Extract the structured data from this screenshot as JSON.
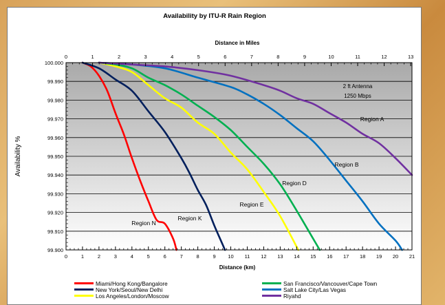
{
  "chart_data": {
    "type": "line",
    "title": "Availability by ITU-R Rain Region",
    "top_axis_title": "Distance in Miles",
    "xlabel": "Distance (km)",
    "ylabel": "Availability %",
    "xlim": [
      0,
      21
    ],
    "ylim": [
      99.9,
      100.0
    ],
    "x_ticks": [
      0,
      1,
      2,
      3,
      4,
      5,
      6,
      7,
      8,
      9,
      10,
      11,
      12,
      13,
      14,
      15,
      16,
      17,
      18,
      19,
      20,
      21
    ],
    "y_ticks": [
      "99.900",
      "99.910",
      "99.920",
      "99.930",
      "99.940",
      "99.950",
      "99.960",
      "99.970",
      "99.980",
      "99.990",
      "100.000"
    ],
    "top_ticks": [
      0,
      1,
      2,
      3,
      4,
      5,
      6,
      7,
      8,
      9,
      10,
      11,
      12,
      13
    ],
    "grid": true,
    "background": "gray-gradient",
    "annotations": [
      "2 ft Antenna",
      "1250 Mbps"
    ],
    "series": [
      {
        "name": "Miami/Hong Kong/Bangalore",
        "label": "Region N",
        "color": "#ff0000",
        "x": [
          1.0,
          1.5,
          2.0,
          2.5,
          3.0,
          3.5,
          4.0,
          4.5,
          5.0,
          5.5,
          6.0,
          6.5,
          6.7
        ],
        "y": [
          100.0,
          99.998,
          99.993,
          99.985,
          99.973,
          99.962,
          99.949,
          99.937,
          99.926,
          99.916,
          99.914,
          99.906,
          99.9
        ]
      },
      {
        "name": "New York/Seoul/New Delhi",
        "label": "Region K",
        "color": "#001f5c",
        "x": [
          1.0,
          2.0,
          3.0,
          4.0,
          5.0,
          6.0,
          7.0,
          7.5,
          8.0,
          8.5,
          9.0,
          9.5,
          9.65
        ],
        "y": [
          100.0,
          99.997,
          99.991,
          99.985,
          99.974,
          99.963,
          99.949,
          99.941,
          99.932,
          99.924,
          99.913,
          99.903,
          99.9
        ]
      },
      {
        "name": "Los Angeles/London/Moscow",
        "label": "Region E",
        "color": "#ffff00",
        "x": [
          2.0,
          3.0,
          4.0,
          5.0,
          6.0,
          7.0,
          8.0,
          9.0,
          10.0,
          11.0,
          12.0,
          13.0,
          14.1
        ],
        "y": [
          100.0,
          99.998,
          99.995,
          99.988,
          99.981,
          99.976,
          99.968,
          99.962,
          99.952,
          99.943,
          99.931,
          99.918,
          99.9
        ]
      },
      {
        "name": "San Francisco/Vancouver/Cape Town",
        "label": "Region D",
        "color": "#00b050",
        "x": [
          2.0,
          3.0,
          4.0,
          5.0,
          6.0,
          7.0,
          8.0,
          9.0,
          10.0,
          11.0,
          12.0,
          13.0,
          14.0,
          15.0,
          15.4
        ],
        "y": [
          100.0,
          99.999,
          99.997,
          99.992,
          99.988,
          99.983,
          99.977,
          99.971,
          99.964,
          99.955,
          99.946,
          99.935,
          99.921,
          99.906,
          99.9
        ]
      },
      {
        "name": "Salt Lake City/Las Vegas",
        "label": "Region B",
        "color": "#0070c0",
        "x": [
          2.0,
          4.0,
          6.0,
          8.0,
          10.0,
          11.0,
          12.0,
          13.0,
          14.0,
          15.0,
          16.0,
          17.0,
          18.0,
          19.0,
          20.0,
          20.4
        ],
        "y": [
          100.0,
          99.999,
          99.997,
          99.992,
          99.987,
          99.983,
          99.978,
          99.972,
          99.965,
          99.958,
          99.948,
          99.937,
          99.926,
          99.914,
          99.905,
          99.9
        ]
      },
      {
        "name": "Riyahd",
        "label": "Region A",
        "color": "#7030a0",
        "x": [
          2.0,
          4.0,
          6.0,
          8.0,
          10.0,
          12.0,
          13.0,
          14.0,
          15.0,
          16.0,
          17.0,
          18.0,
          19.0,
          20.0,
          21.0
        ],
        "y": [
          100.0,
          99.999,
          99.998,
          99.996,
          99.993,
          99.988,
          99.985,
          99.981,
          99.978,
          99.973,
          99.968,
          99.962,
          99.957,
          99.949,
          99.94
        ]
      }
    ]
  }
}
